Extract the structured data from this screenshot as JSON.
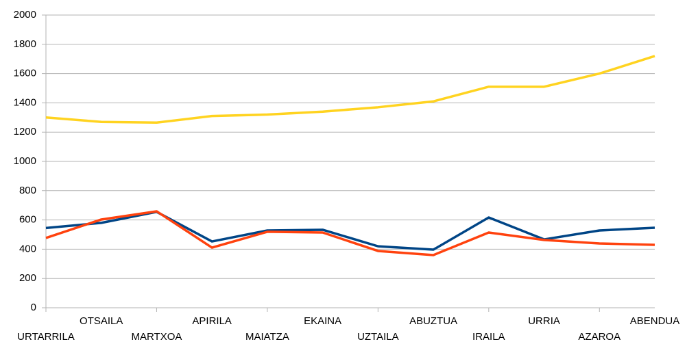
{
  "chart_data": {
    "type": "line",
    "categories": [
      "URTARRILA",
      "OTSAILA",
      "MARTXOA",
      "APIRILA",
      "MAIATZA",
      "EKAINA",
      "UZTAILA",
      "ABUZTUA",
      "IRAILA",
      "URRIA",
      "AZAROA",
      "ABENDUA"
    ],
    "series": [
      {
        "color": "#ffd320",
        "values": [
          1300,
          1270,
          1265,
          1310,
          1320,
          1340,
          1370,
          1410,
          1510,
          1510,
          1600,
          1720
        ]
      },
      {
        "color": "#004586",
        "values": [
          545,
          580,
          655,
          453,
          528,
          533,
          420,
          397,
          617,
          467,
          528,
          547
        ]
      },
      {
        "color": "#ff420e",
        "values": [
          477,
          603,
          659,
          411,
          519,
          514,
          388,
          360,
          514,
          463,
          439,
          430
        ]
      }
    ],
    "ylim": [
      0,
      2000
    ],
    "yticks": [
      0,
      200,
      400,
      600,
      800,
      1000,
      1200,
      1400,
      1600,
      1800,
      2000
    ],
    "grid": true
  }
}
